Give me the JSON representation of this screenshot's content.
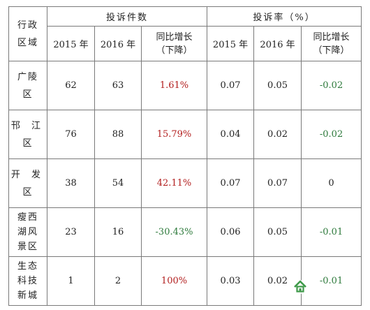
{
  "table": {
    "region_header": [
      "行政",
      "区域"
    ],
    "group_complaints": "投诉件数",
    "group_rate": "投诉率（%）",
    "sub_headers": {
      "y2015": "2015 年",
      "y2016": "2016 年",
      "change": [
        "同比增长",
        "（下降）"
      ]
    },
    "rows": [
      {
        "region": [
          "广陵",
          "区"
        ],
        "c2015": "62",
        "c2016": "63",
        "c_change": "1.61%",
        "c_change_color": "#b21e1e",
        "r2015": "0.07",
        "r2016": "0.05",
        "r_change": "-0.02",
        "r_change_color": "#2e7a3c"
      },
      {
        "region": [
          "邗 江",
          "区"
        ],
        "c2015": "76",
        "c2016": "88",
        "c_change": "15.79%",
        "c_change_color": "#b21e1e",
        "r2015": "0.04",
        "r2016": "0.02",
        "r_change": "-0.02",
        "r_change_color": "#2e7a3c"
      },
      {
        "region": [
          "开 发",
          "区"
        ],
        "c2015": "38",
        "c2016": "54",
        "c_change": "42.11%",
        "c_change_color": "#b21e1e",
        "r2015": "0.07",
        "r2016": "0.07",
        "r_change": "0",
        "r_change_color": "#222222"
      },
      {
        "region": [
          "瘦西",
          "湖风",
          "景区"
        ],
        "c2015": "23",
        "c2016": "16",
        "c_change": "-30.43%",
        "c_change_color": "#2e7a3c",
        "r2015": "0.06",
        "r2016": "0.05",
        "r_change": "-0.01",
        "r_change_color": "#2e7a3c"
      },
      {
        "region": [
          "生态",
          "科技",
          "新城"
        ],
        "c2015": "1",
        "c2016": "2",
        "c_change": "100%",
        "c_change_color": "#b21e1e",
        "r2015": "0.03",
        "r2016": "0.02",
        "r_change": "-0.01",
        "r_change_color": "#2e7a3c"
      }
    ]
  }
}
